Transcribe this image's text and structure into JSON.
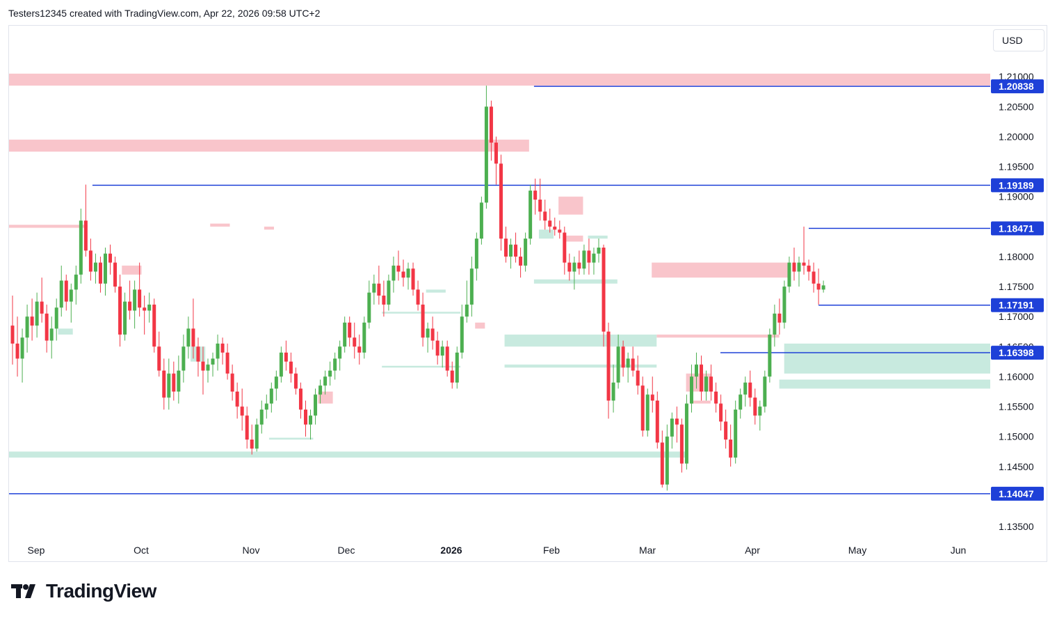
{
  "header": {
    "text": "Testers12345 created with TradingView.com, Apr 22, 2026 09:58 UTC+2"
  },
  "currency": "USD",
  "logo": {
    "text": "TradingView"
  },
  "colors": {
    "up": "#4caf50",
    "down": "#f23645",
    "supply_zone": "#f9c5cb",
    "demand_zone": "#c8eadf",
    "level_line": "#1e40d8",
    "tag_bg": "#1e40d8"
  },
  "chart_data": {
    "type": "candlestick",
    "title": "",
    "y_axis": {
      "min": 1.1335,
      "max": 1.2135,
      "ticks": [
        "1.21000",
        "1.20500",
        "1.20000",
        "1.19500",
        "1.19000",
        "1.18500",
        "1.18000",
        "1.17500",
        "1.17000",
        "1.16500",
        "1.16000",
        "1.15500",
        "1.15000",
        "1.14500",
        "1.14000",
        "1.13500"
      ]
    },
    "x_axis": {
      "labels": [
        {
          "label": "Sep",
          "bold": false
        },
        {
          "label": "Oct",
          "bold": false
        },
        {
          "label": "Nov",
          "bold": false
        },
        {
          "label": "Dec",
          "bold": false
        },
        {
          "label": "2026",
          "bold": true
        },
        {
          "label": "Feb",
          "bold": false
        },
        {
          "label": "Mar",
          "bold": false
        },
        {
          "label": "Apr",
          "bold": false
        },
        {
          "label": "May",
          "bold": false
        },
        {
          "label": "Jun",
          "bold": false
        }
      ]
    },
    "candles": [
      [
        1.1685,
        1.1735,
        1.162,
        1.1655
      ],
      [
        1.1655,
        1.17,
        1.16,
        1.163
      ],
      [
        1.163,
        1.168,
        1.159,
        1.1665
      ],
      [
        1.1665,
        1.172,
        1.164,
        1.17
      ],
      [
        1.17,
        1.173,
        1.166,
        1.1685
      ],
      [
        1.1685,
        1.174,
        1.1665,
        1.1725
      ],
      [
        1.1725,
        1.1765,
        1.169,
        1.1705
      ],
      [
        1.1705,
        1.172,
        1.164,
        1.166
      ],
      [
        1.166,
        1.17,
        1.163,
        1.168
      ],
      [
        1.168,
        1.173,
        1.166,
        1.1715
      ],
      [
        1.1715,
        1.1785,
        1.17,
        1.176
      ],
      [
        1.176,
        1.177,
        1.171,
        1.1725
      ],
      [
        1.1725,
        1.1755,
        1.169,
        1.1745
      ],
      [
        1.1745,
        1.1785,
        1.172,
        1.177
      ],
      [
        1.177,
        1.188,
        1.1755,
        1.186
      ],
      [
        1.186,
        1.192,
        1.18,
        1.181
      ],
      [
        1.181,
        1.183,
        1.176,
        1.1775
      ],
      [
        1.1775,
        1.1805,
        1.1755,
        1.179
      ],
      [
        1.179,
        1.18,
        1.174,
        1.1755
      ],
      [
        1.1755,
        1.1815,
        1.1735,
        1.1805
      ],
      [
        1.1805,
        1.182,
        1.177,
        1.179
      ],
      [
        1.179,
        1.18,
        1.174,
        1.175
      ],
      [
        1.175,
        1.177,
        1.165,
        1.167
      ],
      [
        1.167,
        1.174,
        1.166,
        1.1725
      ],
      [
        1.1725,
        1.176,
        1.1695,
        1.171
      ],
      [
        1.171,
        1.176,
        1.168,
        1.1745
      ],
      [
        1.1745,
        1.179,
        1.17,
        1.1715
      ],
      [
        1.1715,
        1.1735,
        1.167,
        1.171
      ],
      [
        1.171,
        1.174,
        1.169,
        1.172
      ],
      [
        1.172,
        1.173,
        1.164,
        1.165
      ],
      [
        1.165,
        1.1675,
        1.16,
        1.161
      ],
      [
        1.161,
        1.163,
        1.1545,
        1.1565
      ],
      [
        1.1565,
        1.163,
        1.1545,
        1.1605
      ],
      [
        1.1605,
        1.1625,
        1.156,
        1.1575
      ],
      [
        1.1575,
        1.1635,
        1.1555,
        1.161
      ],
      [
        1.161,
        1.167,
        1.159,
        1.165
      ],
      [
        1.165,
        1.17,
        1.163,
        1.168
      ],
      [
        1.168,
        1.173,
        1.163,
        1.165
      ],
      [
        1.165,
        1.1665,
        1.16,
        1.1625
      ],
      [
        1.1625,
        1.165,
        1.157,
        1.161
      ],
      [
        1.161,
        1.163,
        1.159,
        1.162
      ],
      [
        1.162,
        1.164,
        1.16,
        1.163
      ],
      [
        1.163,
        1.167,
        1.161,
        1.1655
      ],
      [
        1.1655,
        1.1665,
        1.162,
        1.164
      ],
      [
        1.164,
        1.1655,
        1.1595,
        1.1605
      ],
      [
        1.1605,
        1.162,
        1.156,
        1.1575
      ],
      [
        1.1575,
        1.159,
        1.153,
        1.155
      ],
      [
        1.155,
        1.158,
        1.151,
        1.1535
      ],
      [
        1.1535,
        1.155,
        1.148,
        1.1495
      ],
      [
        1.1495,
        1.152,
        1.147,
        1.148
      ],
      [
        1.148,
        1.153,
        1.1475,
        1.152
      ],
      [
        1.152,
        1.156,
        1.1505,
        1.1545
      ],
      [
        1.1545,
        1.157,
        1.153,
        1.1555
      ],
      [
        1.1555,
        1.159,
        1.154,
        1.158
      ],
      [
        1.158,
        1.161,
        1.156,
        1.16
      ],
      [
        1.16,
        1.165,
        1.159,
        1.164
      ],
      [
        1.164,
        1.166,
        1.161,
        1.1625
      ],
      [
        1.1625,
        1.164,
        1.159,
        1.1605
      ],
      [
        1.1605,
        1.1615,
        1.157,
        1.158
      ],
      [
        1.158,
        1.159,
        1.153,
        1.1545
      ],
      [
        1.1545,
        1.156,
        1.15,
        1.152
      ],
      [
        1.152,
        1.1545,
        1.1495,
        1.1535
      ],
      [
        1.1535,
        1.158,
        1.152,
        1.157
      ],
      [
        1.157,
        1.1595,
        1.1555,
        1.1585
      ],
      [
        1.1585,
        1.161,
        1.157,
        1.16
      ],
      [
        1.16,
        1.1625,
        1.1585,
        1.161
      ],
      [
        1.161,
        1.164,
        1.1595,
        1.163
      ],
      [
        1.163,
        1.166,
        1.161,
        1.165
      ],
      [
        1.165,
        1.17,
        1.164,
        1.169
      ],
      [
        1.169,
        1.17,
        1.165,
        1.1665
      ],
      [
        1.1665,
        1.169,
        1.163,
        1.165
      ],
      [
        1.165,
        1.167,
        1.162,
        1.164
      ],
      [
        1.164,
        1.17,
        1.163,
        1.169
      ],
      [
        1.169,
        1.176,
        1.168,
        1.174
      ],
      [
        1.174,
        1.177,
        1.172,
        1.1755
      ],
      [
        1.1755,
        1.1785,
        1.172,
        1.1735
      ],
      [
        1.1735,
        1.176,
        1.17,
        1.172
      ],
      [
        1.172,
        1.177,
        1.171,
        1.176
      ],
      [
        1.176,
        1.18,
        1.174,
        1.1785
      ],
      [
        1.1785,
        1.181,
        1.176,
        1.1775
      ],
      [
        1.1775,
        1.1795,
        1.175,
        1.1765
      ],
      [
        1.1765,
        1.179,
        1.1745,
        1.178
      ],
      [
        1.178,
        1.179,
        1.1735,
        1.1745
      ],
      [
        1.1745,
        1.176,
        1.171,
        1.172
      ],
      [
        1.172,
        1.174,
        1.165,
        1.1665
      ],
      [
        1.1665,
        1.169,
        1.164,
        1.168
      ],
      [
        1.168,
        1.17,
        1.1645,
        1.166
      ],
      [
        1.166,
        1.1675,
        1.162,
        1.1635
      ],
      [
        1.1635,
        1.166,
        1.1615,
        1.165
      ],
      [
        1.165,
        1.166,
        1.16,
        1.161
      ],
      [
        1.161,
        1.1625,
        1.158,
        1.159
      ],
      [
        1.159,
        1.165,
        1.158,
        1.164
      ],
      [
        1.164,
        1.172,
        1.163,
        1.17
      ],
      [
        1.17,
        1.176,
        1.169,
        1.172
      ],
      [
        1.172,
        1.18,
        1.17,
        1.178
      ],
      [
        1.178,
        1.184,
        1.176,
        1.183
      ],
      [
        1.183,
        1.19,
        1.182,
        1.189
      ],
      [
        1.189,
        1.2085,
        1.188,
        1.205
      ],
      [
        1.205,
        1.206,
        1.196,
        1.199
      ],
      [
        1.199,
        1.2,
        1.192,
        1.1955
      ],
      [
        1.1955,
        1.197,
        1.181,
        1.183
      ],
      [
        1.183,
        1.185,
        1.179,
        1.18
      ],
      [
        1.18,
        1.183,
        1.178,
        1.182
      ],
      [
        1.182,
        1.184,
        1.179,
        1.18
      ],
      [
        1.18,
        1.1815,
        1.1765,
        1.1785
      ],
      [
        1.1785,
        1.184,
        1.1775,
        1.183
      ],
      [
        1.183,
        1.192,
        1.182,
        1.191
      ],
      [
        1.191,
        1.193,
        1.187,
        1.1895
      ],
      [
        1.1895,
        1.193,
        1.186,
        1.1875
      ],
      [
        1.1875,
        1.1895,
        1.1845,
        1.186
      ],
      [
        1.186,
        1.188,
        1.184,
        1.185
      ],
      [
        1.185,
        1.1865,
        1.1835,
        1.1845
      ],
      [
        1.1845,
        1.186,
        1.183,
        1.184
      ],
      [
        1.184,
        1.185,
        1.177,
        1.179
      ],
      [
        1.179,
        1.1805,
        1.176,
        1.1775
      ],
      [
        1.1775,
        1.18,
        1.1745,
        1.179
      ],
      [
        1.179,
        1.181,
        1.177,
        1.178
      ],
      [
        1.178,
        1.182,
        1.177,
        1.181
      ],
      [
        1.181,
        1.183,
        1.177,
        1.179
      ],
      [
        1.179,
        1.1815,
        1.177,
        1.1805
      ],
      [
        1.1805,
        1.183,
        1.179,
        1.1815
      ],
      [
        1.1815,
        1.182,
        1.165,
        1.1675
      ],
      [
        1.1675,
        1.169,
        1.153,
        1.156
      ],
      [
        1.156,
        1.162,
        1.154,
        1.159
      ],
      [
        1.159,
        1.167,
        1.158,
        1.165
      ],
      [
        1.165,
        1.166,
        1.16,
        1.1615
      ],
      [
        1.1615,
        1.164,
        1.159,
        1.163
      ],
      [
        1.163,
        1.165,
        1.16,
        1.161
      ],
      [
        1.161,
        1.1635,
        1.157,
        1.1585
      ],
      [
        1.1585,
        1.16,
        1.15,
        1.151
      ],
      [
        1.151,
        1.158,
        1.15,
        1.157
      ],
      [
        1.157,
        1.16,
        1.154,
        1.156
      ],
      [
        1.156,
        1.1575,
        1.148,
        1.149
      ],
      [
        1.149,
        1.151,
        1.1415,
        1.142
      ],
      [
        1.142,
        1.152,
        1.141,
        1.15
      ],
      [
        1.15,
        1.154,
        1.148,
        1.153
      ],
      [
        1.153,
        1.155,
        1.149,
        1.152
      ],
      [
        1.152,
        1.153,
        1.144,
        1.1455
      ],
      [
        1.1455,
        1.157,
        1.1445,
        1.1555
      ],
      [
        1.1555,
        1.162,
        1.154,
        1.16
      ],
      [
        1.16,
        1.164,
        1.158,
        1.162
      ],
      [
        1.162,
        1.1635,
        1.156,
        1.1575
      ],
      [
        1.1575,
        1.161,
        1.156,
        1.16
      ],
      [
        1.16,
        1.162,
        1.156,
        1.1575
      ],
      [
        1.1575,
        1.159,
        1.154,
        1.1555
      ],
      [
        1.1555,
        1.157,
        1.151,
        1.1525
      ],
      [
        1.1525,
        1.1545,
        1.148,
        1.1495
      ],
      [
        1.1495,
        1.152,
        1.145,
        1.1465
      ],
      [
        1.1465,
        1.156,
        1.1455,
        1.1545
      ],
      [
        1.1545,
        1.158,
        1.153,
        1.157
      ],
      [
        1.157,
        1.16,
        1.155,
        1.159
      ],
      [
        1.159,
        1.161,
        1.155,
        1.1565
      ],
      [
        1.1565,
        1.158,
        1.152,
        1.1535
      ],
      [
        1.1535,
        1.156,
        1.151,
        1.155
      ],
      [
        1.155,
        1.161,
        1.154,
        1.16
      ],
      [
        1.16,
        1.168,
        1.159,
        1.167
      ],
      [
        1.167,
        1.172,
        1.165,
        1.1705
      ],
      [
        1.1705,
        1.173,
        1.167,
        1.169
      ],
      [
        1.169,
        1.176,
        1.168,
        1.175
      ],
      [
        1.175,
        1.18,
        1.174,
        1.179
      ],
      [
        1.179,
        1.1815,
        1.176,
        1.1775
      ],
      [
        1.1775,
        1.18,
        1.175,
        1.179
      ],
      [
        1.179,
        1.185,
        1.177,
        1.1785
      ],
      [
        1.1785,
        1.1795,
        1.176,
        1.1775
      ],
      [
        1.1775,
        1.179,
        1.174,
        1.1755
      ],
      [
        1.1755,
        1.178,
        1.172,
        1.1745
      ],
      [
        1.1745,
        1.176,
        1.174,
        1.1752
      ]
    ],
    "supply_zones": [
      {
        "start": 0,
        "end": 1.0,
        "low": 1.2085,
        "high": 1.2105
      },
      {
        "start": 0,
        "end": 0.53,
        "low": 1.1975,
        "high": 1.1995
      },
      {
        "start": 0,
        "end": 0.08,
        "low": 1.1848,
        "high": 1.1853
      },
      {
        "start": 0.115,
        "end": 0.135,
        "low": 1.177,
        "high": 1.1785
      },
      {
        "start": 0.205,
        "end": 0.225,
        "low": 1.185,
        "high": 1.1855
      },
      {
        "start": 0.26,
        "end": 0.27,
        "low": 1.1845,
        "high": 1.185
      },
      {
        "start": 0.315,
        "end": 0.33,
        "low": 1.1555,
        "high": 1.1575
      },
      {
        "start": 0.475,
        "end": 0.485,
        "low": 1.168,
        "high": 1.169
      },
      {
        "start": 0.56,
        "end": 0.585,
        "low": 1.187,
        "high": 1.19
      },
      {
        "start": 0.565,
        "end": 0.585,
        "low": 1.1825,
        "high": 1.1835
      },
      {
        "start": 0.655,
        "end": 0.795,
        "low": 1.1765,
        "high": 1.179
      },
      {
        "start": 0.66,
        "end": 0.785,
        "low": 1.1665,
        "high": 1.167
      },
      {
        "start": 0.69,
        "end": 0.715,
        "low": 1.1575,
        "high": 1.1605
      },
      {
        "start": 0.695,
        "end": 0.715,
        "low": 1.1555,
        "high": 1.156
      }
    ],
    "demand_zones": [
      {
        "start": 0,
        "end": 0.69,
        "low": 1.1465,
        "high": 1.1475
      },
      {
        "start": 0.05,
        "end": 0.065,
        "low": 1.167,
        "high": 1.168
      },
      {
        "start": 0.185,
        "end": 0.2,
        "low": 1.1625,
        "high": 1.165
      },
      {
        "start": 0.265,
        "end": 0.31,
        "low": 1.1495,
        "high": 1.1498
      },
      {
        "start": 0.38,
        "end": 0.46,
        "low": 1.1705,
        "high": 1.1708
      },
      {
        "start": 0.38,
        "end": 0.46,
        "low": 1.1615,
        "high": 1.1618
      },
      {
        "start": 0.425,
        "end": 0.445,
        "low": 1.174,
        "high": 1.1745
      },
      {
        "start": 0.505,
        "end": 0.66,
        "low": 1.165,
        "high": 1.167
      },
      {
        "start": 0.505,
        "end": 0.66,
        "low": 1.1615,
        "high": 1.162
      },
      {
        "start": 0.535,
        "end": 0.62,
        "low": 1.1755,
        "high": 1.1762
      },
      {
        "start": 0.54,
        "end": 0.555,
        "low": 1.183,
        "high": 1.1845
      },
      {
        "start": 0.59,
        "end": 0.61,
        "low": 1.183,
        "high": 1.1835
      },
      {
        "start": 0.79,
        "end": 1.0,
        "low": 1.1605,
        "high": 1.1655
      },
      {
        "start": 0.785,
        "end": 1.0,
        "low": 1.158,
        "high": 1.1595
      }
    ],
    "levels": [
      {
        "value": 1.20838,
        "label": "1.20838",
        "start": 0.535
      },
      {
        "value": 1.19189,
        "label": "1.19189",
        "start": 0.085
      },
      {
        "value": 1.18471,
        "label": "1.18471",
        "start": 0.815
      },
      {
        "value": 1.17191,
        "label": "1.17191",
        "start": 0.825
      },
      {
        "value": 1.16398,
        "label": "1.16398",
        "start": 0.725
      },
      {
        "value": 1.14047,
        "label": "1.14047",
        "start": 0
      }
    ],
    "legend": "none",
    "grid": false
  }
}
